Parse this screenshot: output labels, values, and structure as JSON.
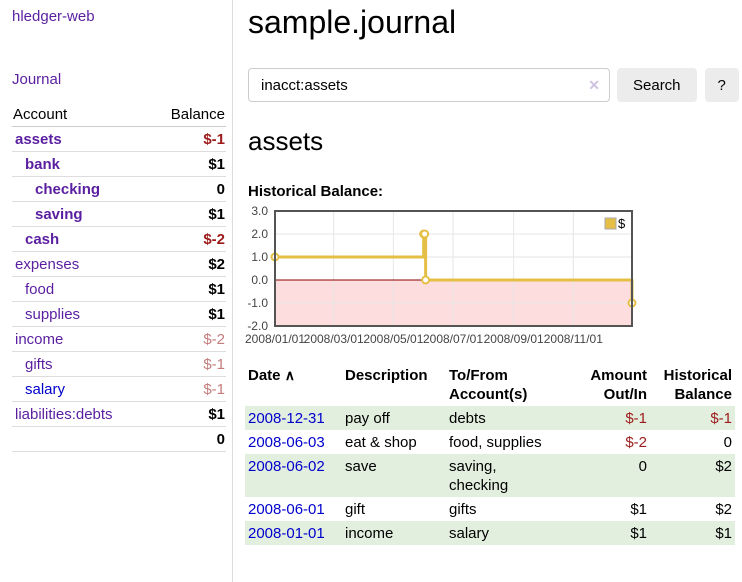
{
  "app": {
    "brand": "hledger-web",
    "nav": {
      "journal": "Journal"
    }
  },
  "sidebar": {
    "headers": {
      "account": "Account",
      "balance": "Balance"
    },
    "rows": [
      {
        "account": "assets",
        "balance": "$-1"
      },
      {
        "account": "bank",
        "balance": "$1"
      },
      {
        "account": "checking",
        "balance": "0"
      },
      {
        "account": "saving",
        "balance": "$1"
      },
      {
        "account": "cash",
        "balance": "$-2"
      },
      {
        "account": "expenses",
        "balance": "$2"
      },
      {
        "account": "food",
        "balance": "$1"
      },
      {
        "account": "supplies",
        "balance": "$1"
      },
      {
        "account": "income",
        "balance": "$-2"
      },
      {
        "account": "gifts",
        "balance": "$-1"
      },
      {
        "account": "salary",
        "balance": "$-1"
      },
      {
        "account": "liabilities:debts",
        "balance": "$1"
      }
    ],
    "total": "0"
  },
  "main": {
    "title": "sample.journal",
    "search": {
      "value": "inacct:assets",
      "clear_icon": "✕",
      "search_button": "Search",
      "help_button": "?"
    },
    "account_heading": "assets",
    "chart_title": "Historical Balance:"
  },
  "chart_data": {
    "type": "line",
    "step": true,
    "title": "Historical Balance:",
    "series": [
      {
        "name": "$",
        "color": "#e5bf45",
        "points": [
          [
            "2008-01-01",
            1
          ],
          [
            "2008-06-01",
            2
          ],
          [
            "2008-06-02",
            2
          ],
          [
            "2008-06-03",
            0
          ],
          [
            "2008-12-31",
            -1
          ]
        ]
      }
    ],
    "x_range": [
      "2008-01-01",
      "2008-12-31"
    ],
    "x_ticks": [
      "2008/01/01",
      "2008/03/01",
      "2008/05/01",
      "2008/07/01",
      "2008/09/01",
      "2008/11/01"
    ],
    "y_ticks": [
      "3.0",
      "2.0",
      "1.0",
      "0.0",
      "-1.0",
      "-2.0"
    ],
    "ylim": [
      -2,
      3
    ],
    "grid": true,
    "grid_color": "#e6e6e6",
    "border_color": "#545454",
    "zero_line_color": "#8b0000",
    "negative_region_color": "#fddddd",
    "legend_position": "top-right",
    "markers": "hollow-circle"
  },
  "register": {
    "headers": {
      "date": "Date",
      "sort_icon": "∧",
      "description": "Description",
      "account": "To/From Account(s)",
      "amount": "Amount Out/In",
      "balance": "Historical Balance"
    },
    "rows": [
      {
        "date": "2008-12-31",
        "description": "pay off",
        "account": "debts",
        "amount": "$-1",
        "balance": "$-1"
      },
      {
        "date": "2008-06-03",
        "description": "eat & shop",
        "account": "food, supplies",
        "amount": "$-2",
        "balance": "0"
      },
      {
        "date": "2008-06-02",
        "description": "save",
        "account": "saving,\nchecking",
        "amount": "0",
        "balance": "$2"
      },
      {
        "date": "2008-06-01",
        "description": "gift",
        "account": "gifts",
        "amount": "$1",
        "balance": "$2"
      },
      {
        "date": "2008-01-01",
        "description": "income",
        "account": "salary",
        "amount": "$1",
        "balance": "$1"
      }
    ]
  }
}
